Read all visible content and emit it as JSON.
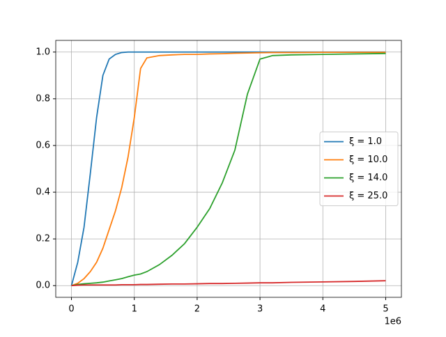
{
  "chart_data": {
    "type": "line",
    "x": [
      0,
      0.1,
      0.2,
      0.3,
      0.4,
      0.5,
      0.6,
      0.7,
      0.8,
      0.9,
      1.0,
      1.1,
      1.2,
      1.4,
      1.6,
      1.8,
      2.0,
      2.2,
      2.4,
      2.6,
      2.8,
      3.0,
      3.2,
      3.5,
      4.0,
      4.5,
      5.0
    ],
    "x_offset_label": "1e6",
    "series": [
      {
        "name": "ξ = 1.0",
        "color": "#1f77b4",
        "values": [
          0,
          0.1,
          0.25,
          0.48,
          0.72,
          0.9,
          0.97,
          0.99,
          0.998,
          1.0,
          1.0,
          1.0,
          1.0,
          1.0,
          1.0,
          1.0,
          1.0,
          1.0,
          1.0,
          1.0,
          1.0,
          1.0,
          1.0,
          1.0,
          1.0,
          1.0,
          1.0
        ]
      },
      {
        "name": "ξ = 10.0",
        "color": "#ff7f0e",
        "values": [
          0,
          0.01,
          0.03,
          0.06,
          0.1,
          0.16,
          0.24,
          0.32,
          0.42,
          0.55,
          0.72,
          0.93,
          0.975,
          0.985,
          0.988,
          0.99,
          0.99,
          0.992,
          0.993,
          0.995,
          0.996,
          0.997,
          0.998,
          0.998,
          0.999,
          0.999,
          0.999
        ]
      },
      {
        "name": "ξ = 14.0",
        "color": "#2ca02c",
        "values": [
          0,
          0.005,
          0.008,
          0.01,
          0.012,
          0.015,
          0.02,
          0.025,
          0.03,
          0.038,
          0.045,
          0.05,
          0.06,
          0.09,
          0.13,
          0.18,
          0.25,
          0.33,
          0.44,
          0.58,
          0.82,
          0.97,
          0.985,
          0.988,
          0.99,
          0.992,
          0.994
        ]
      },
      {
        "name": "ξ = 25.0",
        "color": "#d62728",
        "values": [
          0,
          0.002,
          0.003,
          0.003,
          0.003,
          0.003,
          0.003,
          0.003,
          0.004,
          0.004,
          0.004,
          0.005,
          0.005,
          0.006,
          0.007,
          0.007,
          0.008,
          0.009,
          0.009,
          0.01,
          0.011,
          0.012,
          0.012,
          0.014,
          0.016,
          0.018,
          0.021
        ]
      }
    ],
    "xlim": [
      -0.25,
      5.25
    ],
    "ylim": [
      -0.05,
      1.05
    ],
    "xticks": [
      0,
      1,
      2,
      3,
      4,
      5
    ],
    "yticks": [
      {
        "value": 0,
        "label": "0.0"
      },
      {
        "value": 0.2,
        "label": "0.2"
      },
      {
        "value": 0.4,
        "label": "0.4"
      },
      {
        "value": 0.6,
        "label": "0.6"
      },
      {
        "value": 0.8,
        "label": "0.8"
      },
      {
        "value": 1.0,
        "label": "1.0"
      }
    ],
    "grid": true,
    "legend": "right"
  }
}
